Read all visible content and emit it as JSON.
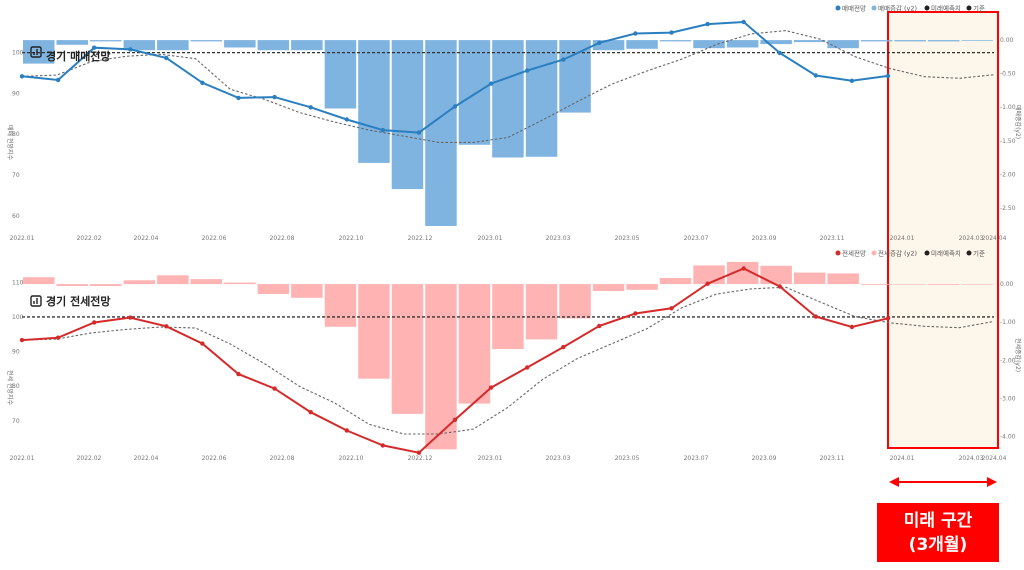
{
  "colors": {
    "sale_line": "#2a7fc0",
    "sale_bar": "#7fb3e0",
    "jeonse_line": "#d62a2a",
    "jeonse_bar": "#ffb3b3",
    "future_fill": "#fdf6ea",
    "highlight": "#ff0000",
    "base_line": "#333333",
    "forecast": "#666666"
  },
  "icons": {
    "chart_logo": "chart-logo-icon",
    "arrow": "double-arrow-icon"
  },
  "annotation": {
    "line1": "미래 구간",
    "line2": "(3개월)"
  },
  "chart_data": [
    {
      "type": "line+bar",
      "title": "경기 매매전망",
      "ylabel": "매매 전망지수",
      "y2label": "매매증감(y2)",
      "legend": [
        "매매전망",
        "매매증감 (y2)",
        "미래예측치",
        "기준"
      ],
      "x_ticks": [
        "2022.01",
        "2022.02",
        "2022.04",
        "2022.06",
        "2022.08",
        "2022.10",
        "2022.12",
        "2023.01",
        "2023.03",
        "2023.05",
        "2023.07",
        "2023.09",
        "2023.11",
        "2024.01",
        "2024.03",
        "2024.04"
      ],
      "ylim": [
        57,
        108
      ],
      "y_ticks": [
        60,
        70,
        80,
        90,
        100
      ],
      "y2lim": [
        -2.8,
        0.3
      ],
      "y2_ticks": [
        "0.00",
        "-0.50",
        "-1.00",
        "-1.50",
        "-2.00",
        "-2.50"
      ],
      "baseline": 100,
      "series": [
        {
          "name": "매매전망",
          "values": [
            94.2,
            93.3,
            101.2,
            100.8,
            98.7,
            92.6,
            88.9,
            89.1,
            86.6,
            83.6,
            81,
            80.4,
            86.8,
            92.4,
            95.6,
            98.3,
            102.4,
            104.7,
            104.9,
            107,
            107.5,
            99.9,
            94.4,
            93.1,
            94.3
          ]
        },
        {
          "name": "미래예측치",
          "values": [
            94.2,
            94.5,
            97.8,
            99.1,
            99.6,
            98.5,
            91,
            88.5,
            85.3,
            83,
            81,
            79.5,
            78,
            78,
            79.2,
            83.5,
            88,
            92.3,
            95.5,
            98.4,
            102,
            104.6,
            105.4,
            103.3,
            99,
            96.1,
            94.1,
            93.7,
            94.6
          ]
        },
        {
          "name": "매매증감 (y2)",
          "values": [
            -0.35,
            -0.07,
            -0.02,
            -0.15,
            -0.15,
            -0.02,
            -0.11,
            -0.15,
            -0.15,
            -1.02,
            -1.83,
            -2.22,
            -2.77,
            -1.56,
            -1.75,
            -1.74,
            -1.08,
            -0.15,
            -0.13,
            -0.02,
            -0.12,
            -0.11,
            -0.06,
            -0.03,
            -0.12,
            -0.02,
            -0.02,
            -0.02,
            -0.01
          ]
        }
      ]
    },
    {
      "type": "line+bar",
      "title": "경기 전세전망",
      "ylabel": "전세 전망지수",
      "y2label": "전세증감(y2)",
      "legend": [
        "전세전망",
        "전세증감 (y2)",
        "미래예측치",
        "기준"
      ],
      "x_ticks": [
        "2022.01",
        "2022.02",
        "2022.04",
        "2022.06",
        "2022.08",
        "2022.10",
        "2022.12",
        "2023.01",
        "2023.03",
        "2023.05",
        "2023.07",
        "2023.09",
        "2023.11",
        "2024.01",
        "2024.03",
        "2024.04"
      ],
      "ylim": [
        61,
        115
      ],
      "y_ticks": [
        70,
        80,
        90,
        100,
        110
      ],
      "y2lim": [
        -4.4,
        0.5
      ],
      "y2_ticks": [
        "0.00",
        "-1.00",
        "-2.00",
        "-3.00",
        "-4.00"
      ],
      "baseline": 100,
      "series": [
        {
          "name": "전세전망",
          "values": [
            93.3,
            94,
            98.4,
            99.8,
            97.3,
            92.3,
            83.5,
            79.3,
            72.5,
            67.2,
            62.9,
            60.8,
            70.3,
            79.6,
            85.4,
            91.3,
            97.4,
            101,
            102.5,
            109.6,
            114,
            108.8,
            100.1,
            97.1,
            99.6
          ]
        },
        {
          "name": "미래예측치",
          "values": [
            93.3,
            93.6,
            95.4,
            96.4,
            97.1,
            96.8,
            92.2,
            86.4,
            79.9,
            75.2,
            69,
            66.2,
            66.2,
            67.6,
            73.9,
            82,
            88,
            92.3,
            96.6,
            102.6,
            106.6,
            108.1,
            108.6,
            104.3,
            100.1,
            98.3,
            97.3,
            96.9,
            98.7
          ]
        },
        {
          "name": "전세증감 (y2)",
          "values": [
            0.18,
            -0.05,
            -0.05,
            0.1,
            0.23,
            0.13,
            0.04,
            -0.26,
            -0.36,
            -1.12,
            -2.48,
            -3.4,
            -4.33,
            -3.13,
            -1.7,
            -1.45,
            -0.9,
            -0.18,
            -0.15,
            0.16,
            0.49,
            0.58,
            0.48,
            0.3,
            0.28,
            -0.02,
            -0.01,
            -0.02,
            -0.01
          ]
        }
      ]
    }
  ]
}
